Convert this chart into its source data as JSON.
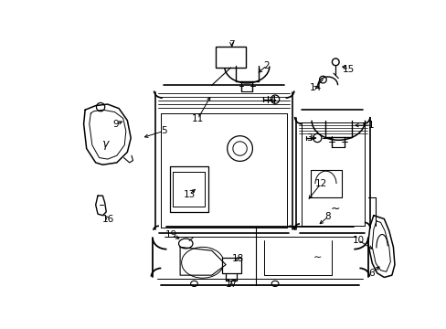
{
  "bg": "#ffffff",
  "lc": "#000000",
  "figsize": [
    4.89,
    3.6
  ],
  "dpi": 100
}
